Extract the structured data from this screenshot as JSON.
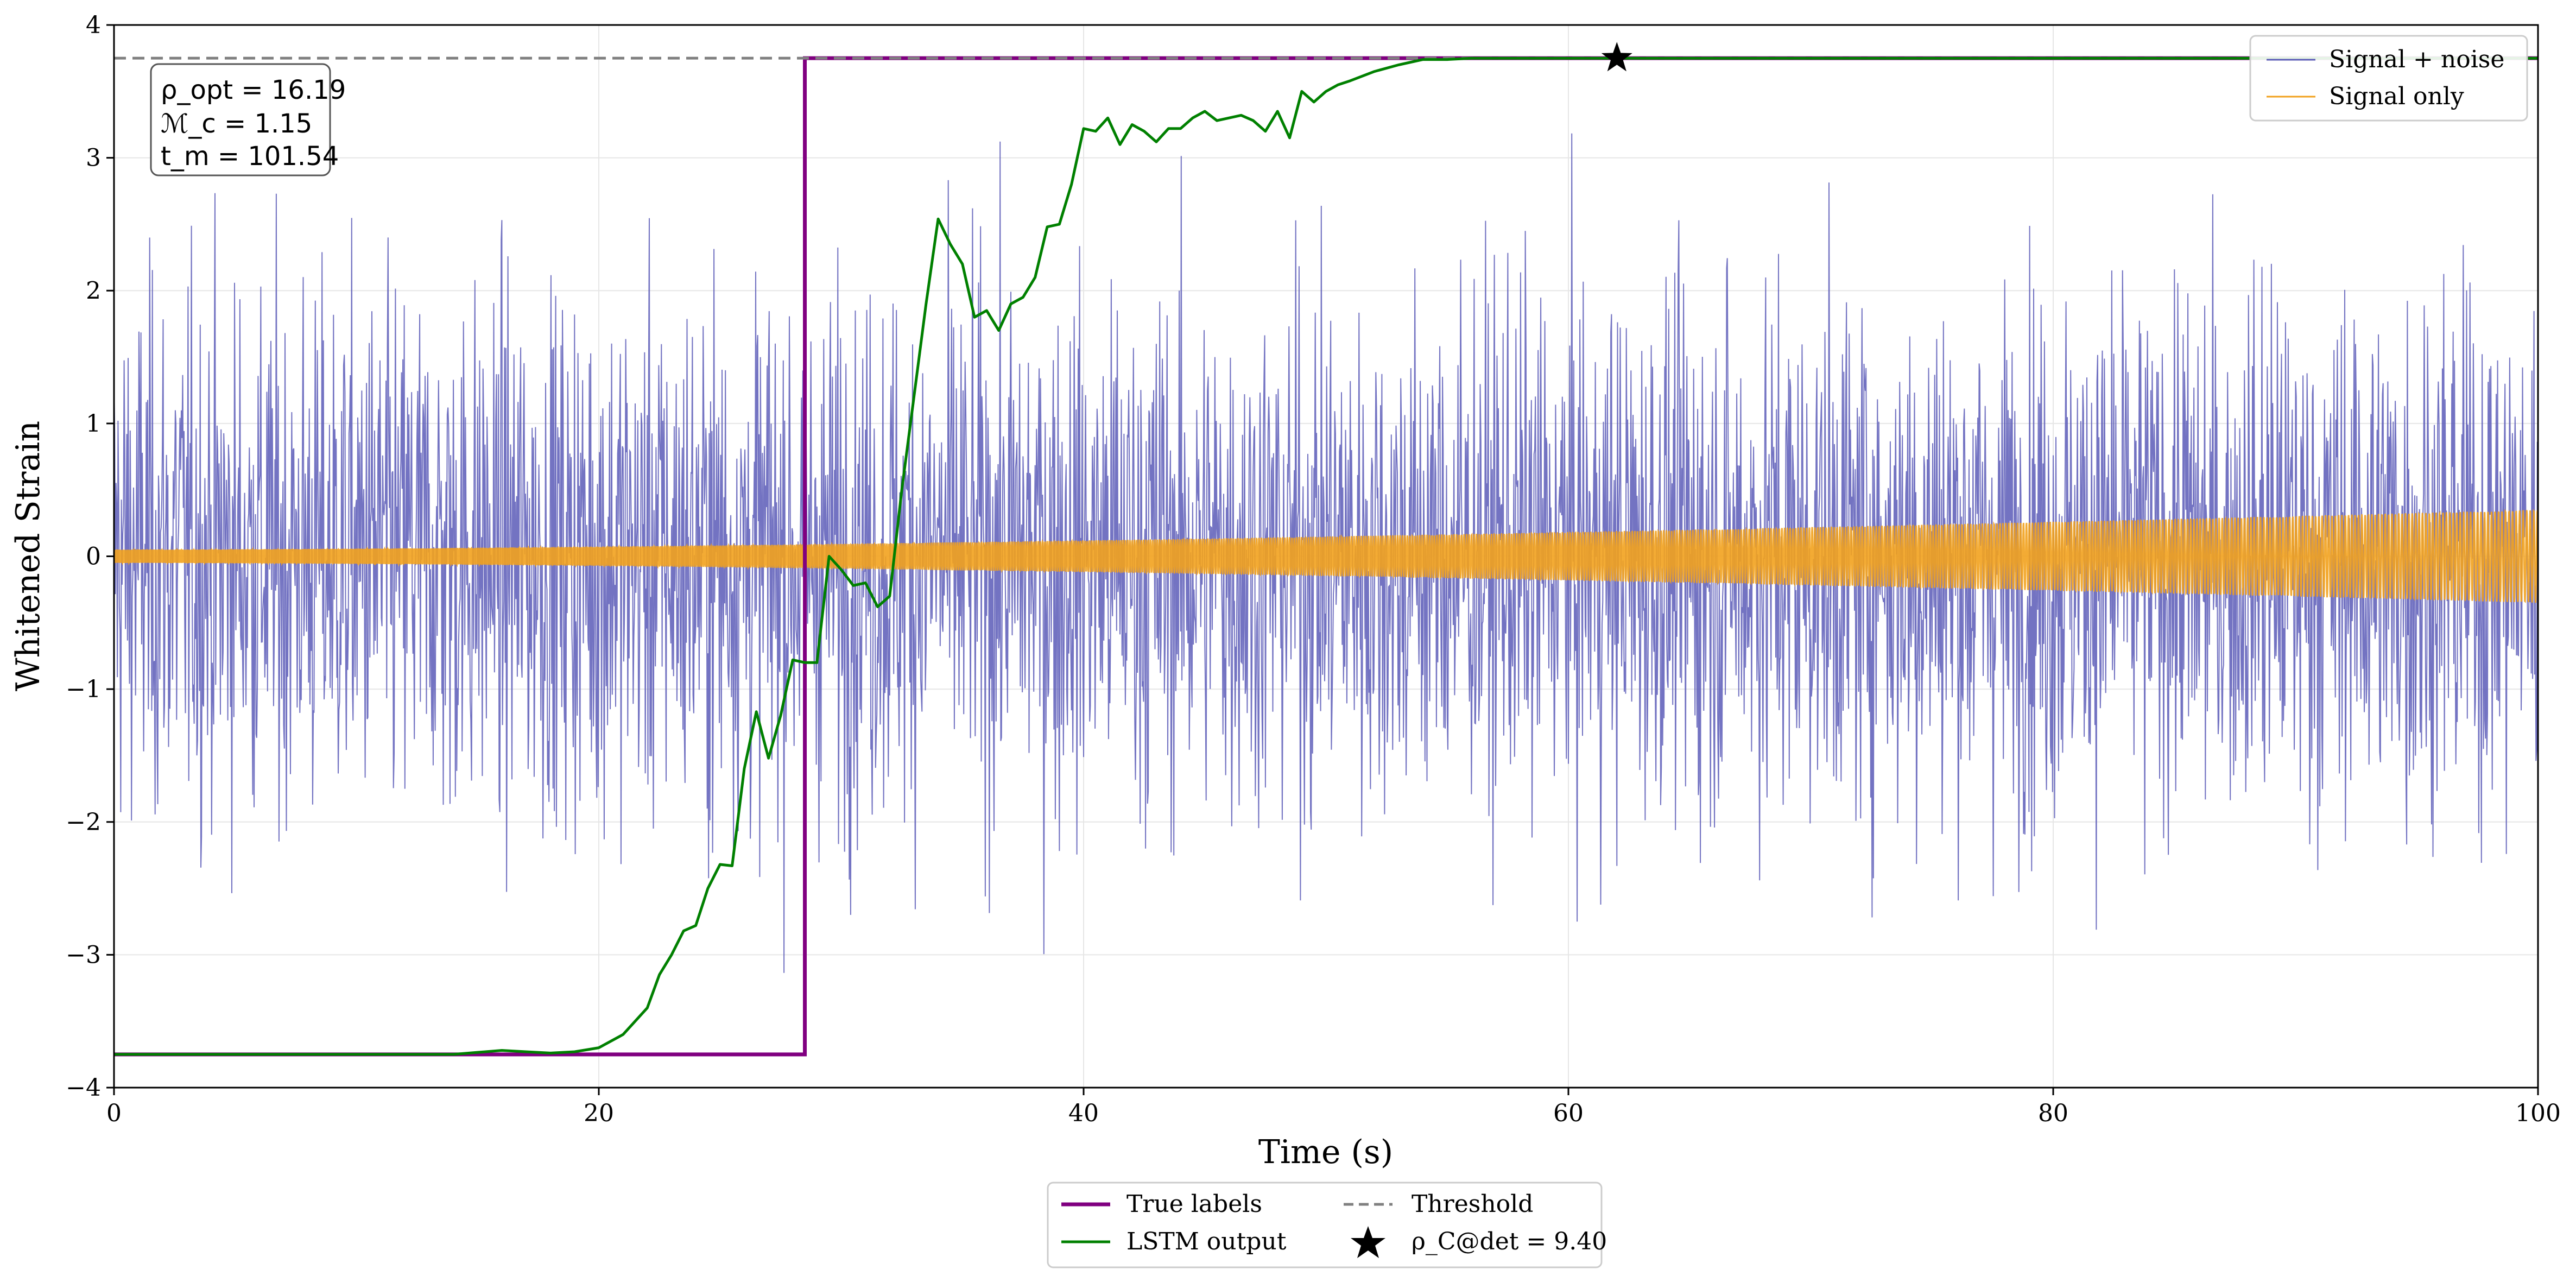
{
  "chart_data": {
    "type": "line",
    "xlabel": "Time (s)",
    "ylabel": "Whitened Strain",
    "xlim": [
      0,
      100
    ],
    "ylim": [
      -4,
      4
    ],
    "x_ticks": [
      0,
      20,
      40,
      60,
      80,
      100
    ],
    "y_ticks": [
      -4,
      -3,
      -2,
      -1,
      0,
      1,
      2,
      3,
      4
    ],
    "x_tick_labels": [
      "0",
      "20",
      "40",
      "60",
      "80",
      "100"
    ],
    "y_tick_labels": [
      "−4",
      "−3",
      "−2",
      "−1",
      "0",
      "1",
      "2",
      "3",
      "4"
    ],
    "grid": true,
    "threshold": 3.75,
    "label_low": -3.75,
    "label_high": 3.75,
    "label_transition_t": 28.5,
    "detection_marker": {
      "t": 62,
      "y": 3.75
    },
    "annotation": {
      "rho_opt": "ρ_opt = 16.19",
      "mc": "ℳ_c = 1.15",
      "tm": "t_m = 101.54"
    },
    "series": [
      {
        "name": "Signal + noise",
        "color": "#5b5bb7",
        "style": "line",
        "noise_std": 1.0,
        "spike_range": [
          -3.6,
          3.5
        ]
      },
      {
        "name": "Signal only",
        "color": "#f2a21e",
        "style": "chirp",
        "amplitude_start": 0.05,
        "amplitude_end": 0.35
      },
      {
        "name": "True labels",
        "color": "#800080",
        "style": "step"
      },
      {
        "name": "LSTM output",
        "color": "#008000",
        "style": "line",
        "t": [
          0,
          14,
          16,
          17,
          18,
          19,
          20,
          21,
          21.5,
          22,
          22.5,
          23,
          23.5,
          24,
          24.5,
          25,
          25.5,
          26,
          26.5,
          27,
          27.5,
          28,
          28.5,
          29,
          29.5,
          30,
          30.5,
          31,
          31.5,
          32,
          32.5,
          33,
          33.5,
          34,
          34.5,
          35,
          35.5,
          36,
          36.5,
          37,
          37.5,
          38,
          38.5,
          39,
          39.5,
          40,
          40.5,
          41,
          41.5,
          42,
          42.5,
          43,
          43.5,
          44,
          44.5,
          45,
          45.5,
          46,
          46.5,
          47,
          47.5,
          48,
          48.5,
          49,
          49.5,
          50,
          50.5,
          51,
          52,
          53,
          53.5,
          54,
          55,
          56,
          57,
          58,
          59,
          60,
          62,
          65,
          70,
          80,
          90,
          100
        ],
        "values": [
          -3.75,
          -3.75,
          -3.72,
          -3.73,
          -3.74,
          -3.73,
          -3.7,
          -3.6,
          -3.5,
          -3.4,
          -3.15,
          -3.0,
          -2.82,
          -2.78,
          -2.5,
          -2.32,
          -2.33,
          -1.6,
          -1.17,
          -1.52,
          -1.2,
          -0.78,
          -0.8,
          -0.8,
          0.0,
          -0.1,
          -0.22,
          -0.2,
          -0.38,
          -0.3,
          0.5,
          1.2,
          1.9,
          2.54,
          2.35,
          2.2,
          1.8,
          1.85,
          1.7,
          1.9,
          1.95,
          2.1,
          2.48,
          2.5,
          2.8,
          3.22,
          3.2,
          3.3,
          3.1,
          3.25,
          3.2,
          3.12,
          3.22,
          3.22,
          3.3,
          3.35,
          3.28,
          3.3,
          3.32,
          3.28,
          3.2,
          3.35,
          3.15,
          3.5,
          3.42,
          3.5,
          3.55,
          3.58,
          3.65,
          3.7,
          3.72,
          3.74,
          3.74,
          3.75,
          3.75,
          3.75,
          3.75,
          3.75,
          3.75,
          3.75,
          3.75,
          3.75,
          3.75,
          3.75
        ]
      },
      {
        "name": "Threshold",
        "color": "#808080",
        "style": "dashed"
      }
    ],
    "legend_top_right": [
      "Signal + noise",
      "Signal only"
    ],
    "legend_bottom": {
      "true_labels": "True labels",
      "lstm_output": "LSTM output",
      "threshold": "Threshold",
      "detection": "ρ_C@det = 9.40"
    }
  }
}
